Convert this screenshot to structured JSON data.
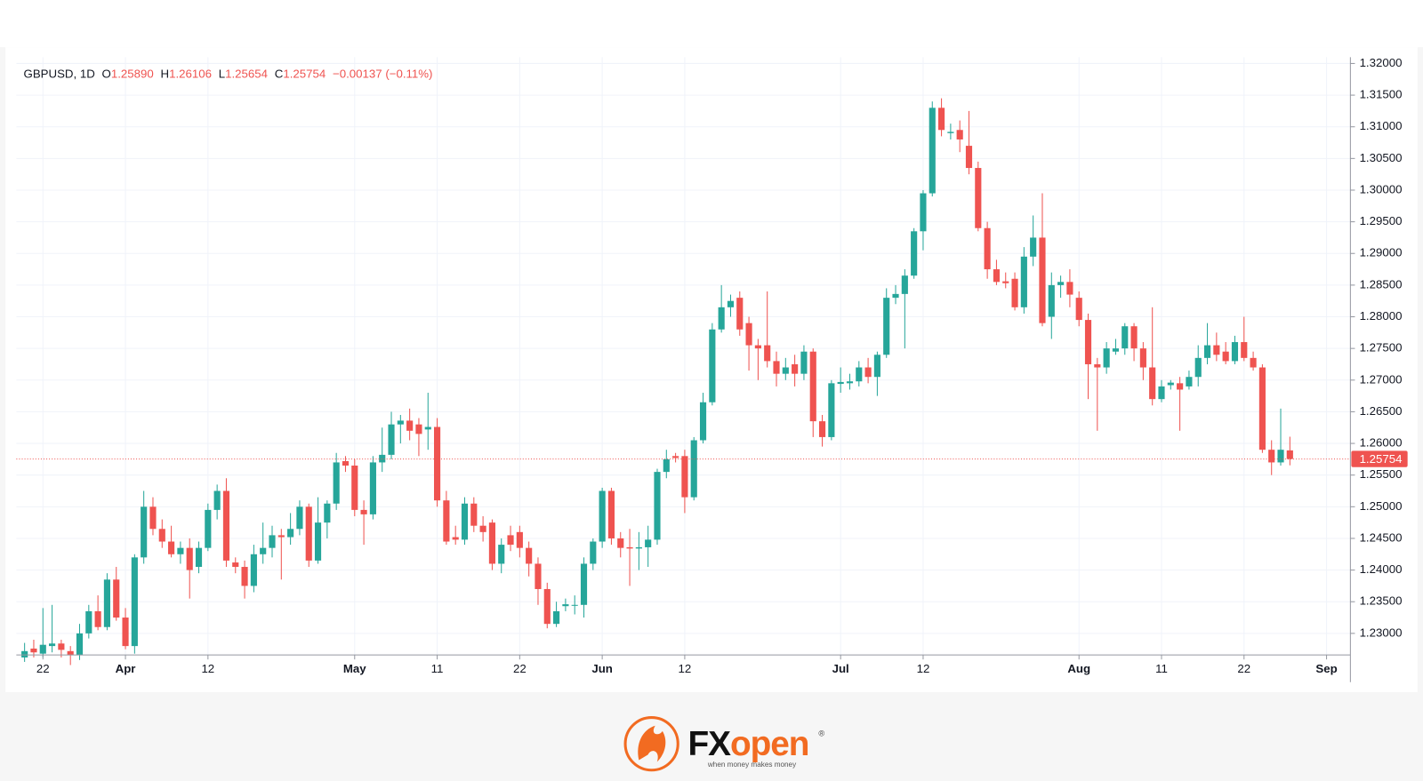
{
  "header": {
    "symbol": "GBPUSD, 1D",
    "o_label": "O",
    "o": "1.25890",
    "h_label": "H",
    "h": "1.26106",
    "l_label": "L",
    "l": "1.25654",
    "c_label": "C",
    "c": "1.25754",
    "change": "−0.00137 (−0.11%)"
  },
  "chart_data": {
    "type": "candlestick",
    "up_color": "#26a69a",
    "down_color": "#ef5350",
    "grid": true,
    "xlim": [
      -0.9,
      144.6
    ],
    "ylim": [
      1.2266,
      1.321
    ],
    "xticks": [
      {
        "value": 2,
        "label": "22"
      },
      {
        "value": 11,
        "label": "Apr"
      },
      {
        "value": 20,
        "label": "12"
      },
      {
        "value": 36,
        "label": "May"
      },
      {
        "value": 45,
        "label": "11"
      },
      {
        "value": 54,
        "label": "22"
      },
      {
        "value": 63,
        "label": "Jun"
      },
      {
        "value": 72,
        "label": "12"
      },
      {
        "value": 89,
        "label": "Jul"
      },
      {
        "value": 98,
        "label": "12"
      },
      {
        "value": 115,
        "label": "Aug"
      },
      {
        "value": 124,
        "label": "11"
      },
      {
        "value": 133,
        "label": "22"
      },
      {
        "value": 142,
        "label": "Sep"
      }
    ],
    "yticks": [
      {
        "value": 1.23,
        "label": "1.23000"
      },
      {
        "value": 1.235,
        "label": "1.23500"
      },
      {
        "value": 1.24,
        "label": "1.24000"
      },
      {
        "value": 1.245,
        "label": "1.24500"
      },
      {
        "value": 1.25,
        "label": "1.25000"
      },
      {
        "value": 1.255,
        "label": "1.25500"
      },
      {
        "value": 1.26,
        "label": "1.26000"
      },
      {
        "value": 1.265,
        "label": "1.26500"
      },
      {
        "value": 1.27,
        "label": "1.27000"
      },
      {
        "value": 1.275,
        "label": "1.27500"
      },
      {
        "value": 1.28,
        "label": "1.28000"
      },
      {
        "value": 1.285,
        "label": "1.28500"
      },
      {
        "value": 1.29,
        "label": "1.29000"
      },
      {
        "value": 1.295,
        "label": "1.29500"
      },
      {
        "value": 1.3,
        "label": "1.30000"
      },
      {
        "value": 1.305,
        "label": "1.30500"
      },
      {
        "value": 1.31,
        "label": "1.31000"
      },
      {
        "value": 1.315,
        "label": "1.31500"
      },
      {
        "value": 1.32,
        "label": "1.32000"
      }
    ],
    "last_price": {
      "value": 1.25754,
      "label": "1.25754"
    },
    "open": [
      1.2262,
      1.2276,
      1.2268,
      1.228,
      1.2284,
      1.2272,
      1.2266,
      1.23,
      1.2335,
      1.231,
      1.2385,
      1.2325,
      1.228,
      1.242,
      1.25,
      1.2465,
      1.2445,
      1.2425,
      1.2435,
      1.2405,
      1.2435,
      1.2495,
      1.2525,
      1.2412,
      1.2405,
      1.2375,
      1.2425,
      1.2435,
      1.2455,
      1.2452,
      1.2465,
      1.25,
      1.2415,
      1.2475,
      1.2505,
      1.2572,
      1.2565,
      1.2495,
      1.2488,
      1.257,
      1.2582,
      1.263,
      1.2636,
      1.263,
      1.2622,
      1.2626,
      1.251,
      1.2452,
      1.2448,
      1.2505,
      1.247,
      1.2475,
      1.241,
      1.2455,
      1.246,
      1.2435,
      1.241,
      1.237,
      1.2315,
      1.2343,
      1.2344,
      1.2345,
      1.241,
      1.2445,
      1.2525,
      1.245,
      1.2436,
      1.2434,
      1.2436,
      1.2448,
      1.2555,
      1.258,
      1.258,
      1.2515,
      1.2605,
      1.2665,
      1.278,
      1.2815,
      1.283,
      1.279,
      1.2755,
      1.2755,
      1.273,
      1.271,
      1.2725,
      1.271,
      1.2745,
      1.2635,
      1.261,
      1.2694,
      1.2695,
      1.2698,
      1.272,
      1.2705,
      1.274,
      1.283,
      1.2836,
      1.2865,
      1.2935,
      1.2995,
      1.313,
      1.309,
      1.3095,
      1.307,
      1.3035,
      1.294,
      1.2875,
      1.2856,
      1.286,
      1.2815,
      1.2895,
      1.2925,
      1.28,
      1.285,
      1.2855,
      1.283,
      1.2795,
      1.2725,
      1.272,
      1.2745,
      1.275,
      1.2785,
      1.275,
      1.272,
      1.267,
      1.2692,
      1.2695,
      1.269,
      1.2705,
      1.2735,
      1.2755,
      1.2745,
      1.273,
      1.276,
      1.2735,
      1.272,
      1.259,
      1.257,
      1.2589
    ],
    "high": [
      1.2285,
      1.229,
      1.234,
      1.2345,
      1.229,
      1.228,
      1.2315,
      1.2345,
      1.236,
      1.2395,
      1.2405,
      1.234,
      1.2425,
      1.2525,
      1.2515,
      1.248,
      1.247,
      1.2445,
      1.245,
      1.2445,
      1.2505,
      1.2535,
      1.2545,
      1.242,
      1.2415,
      1.244,
      1.2475,
      1.247,
      1.2465,
      1.249,
      1.251,
      1.2505,
      1.2515,
      1.251,
      1.2585,
      1.258,
      1.2575,
      1.251,
      1.258,
      1.2625,
      1.265,
      1.2645,
      1.2655,
      1.264,
      1.268,
      1.264,
      1.2525,
      1.247,
      1.2515,
      1.2515,
      1.2485,
      1.248,
      1.245,
      1.247,
      1.247,
      1.2445,
      1.242,
      1.238,
      1.235,
      1.2355,
      1.236,
      1.242,
      1.245,
      1.253,
      1.253,
      1.246,
      1.2465,
      1.246,
      1.247,
      1.256,
      1.259,
      1.2585,
      1.259,
      1.261,
      1.268,
      1.279,
      1.285,
      1.2835,
      1.284,
      1.28,
      1.2765,
      1.284,
      1.2745,
      1.2735,
      1.274,
      1.2755,
      1.275,
      1.2645,
      1.27,
      1.272,
      1.271,
      1.273,
      1.2735,
      1.2745,
      1.2845,
      1.285,
      1.2875,
      1.294,
      1.3,
      1.314,
      1.3145,
      1.3105,
      1.311,
      1.3125,
      1.3045,
      1.295,
      1.289,
      1.287,
      1.287,
      1.291,
      1.296,
      1.2995,
      1.287,
      1.2865,
      1.2875,
      1.284,
      1.2805,
      1.2735,
      1.276,
      1.2765,
      1.279,
      1.279,
      1.276,
      1.2815,
      1.27,
      1.27,
      1.2705,
      1.2715,
      1.2755,
      1.279,
      1.2775,
      1.276,
      1.277,
      1.28,
      1.2745,
      1.2725,
      1.2605,
      1.2655,
      1.26106
    ],
    "low": [
      1.2255,
      1.2262,
      1.2262,
      1.227,
      1.2262,
      1.225,
      1.2258,
      1.2292,
      1.2305,
      1.2305,
      1.232,
      1.2275,
      1.2268,
      1.241,
      1.2455,
      1.2435,
      1.242,
      1.241,
      1.2355,
      1.2395,
      1.243,
      1.248,
      1.2405,
      1.2395,
      1.2355,
      1.2365,
      1.241,
      1.242,
      1.2385,
      1.244,
      1.2455,
      1.2405,
      1.241,
      1.245,
      1.2495,
      1.2555,
      1.2485,
      1.244,
      1.248,
      1.2555,
      1.2575,
      1.26,
      1.2605,
      1.258,
      1.259,
      1.25,
      1.244,
      1.244,
      1.244,
      1.246,
      1.2445,
      1.24,
      1.2395,
      1.243,
      1.242,
      1.239,
      1.2345,
      1.2308,
      1.231,
      1.2335,
      1.233,
      1.2325,
      1.24,
      1.2435,
      1.244,
      1.242,
      1.2375,
      1.24,
      1.2405,
      1.244,
      1.2545,
      1.257,
      1.249,
      1.251,
      1.26,
      1.266,
      1.2775,
      1.28,
      1.277,
      1.2715,
      1.27,
      1.272,
      1.269,
      1.27,
      1.269,
      1.27,
      1.261,
      1.2595,
      1.2605,
      1.268,
      1.2685,
      1.269,
      1.2695,
      1.2675,
      1.2735,
      1.282,
      1.275,
      1.286,
      1.2905,
      1.299,
      1.3085,
      1.308,
      1.306,
      1.3025,
      1.2935,
      1.286,
      1.285,
      1.2845,
      1.281,
      1.2805,
      1.288,
      1.2785,
      1.2765,
      1.283,
      1.2815,
      1.2785,
      1.267,
      1.262,
      1.271,
      1.274,
      1.274,
      1.273,
      1.27,
      1.266,
      1.2665,
      1.2685,
      1.262,
      1.2685,
      1.269,
      1.2725,
      1.273,
      1.2725,
      1.2725,
      1.273,
      1.2715,
      1.2585,
      1.255,
      1.2565,
      1.25654
    ],
    "close": [
      1.2272,
      1.227,
      1.2282,
      1.2284,
      1.2274,
      1.2266,
      1.23,
      1.2335,
      1.231,
      1.2385,
      1.2325,
      1.228,
      1.242,
      1.25,
      1.2465,
      1.2445,
      1.2425,
      1.2435,
      1.24,
      1.2435,
      1.2495,
      1.2525,
      1.2415,
      1.2405,
      1.2375,
      1.2425,
      1.2435,
      1.2455,
      1.2452,
      1.2465,
      1.25,
      1.2415,
      1.2475,
      1.2505,
      1.257,
      1.2565,
      1.2495,
      1.2488,
      1.257,
      1.2582,
      1.263,
      1.2636,
      1.262,
      1.2615,
      1.2626,
      1.251,
      1.2445,
      1.2448,
      1.2505,
      1.247,
      1.246,
      1.241,
      1.244,
      1.244,
      1.2435,
      1.241,
      1.237,
      1.2315,
      1.2335,
      1.2346,
      1.2345,
      1.241,
      1.2445,
      1.2525,
      1.245,
      1.2435,
      1.2434,
      1.2436,
      1.2448,
      1.2555,
      1.2575,
      1.2577,
      1.2515,
      1.2605,
      1.2665,
      1.278,
      1.2815,
      1.2825,
      1.278,
      1.2755,
      1.275,
      1.273,
      1.271,
      1.272,
      1.271,
      1.2745,
      1.2635,
      1.261,
      1.2695,
      1.2697,
      1.2698,
      1.272,
      1.2705,
      1.274,
      1.283,
      1.2836,
      1.2865,
      1.2935,
      1.2995,
      1.313,
      1.3095,
      1.3092,
      1.308,
      1.3035,
      1.294,
      1.2875,
      1.2855,
      1.2853,
      1.2815,
      1.2895,
      1.2925,
      1.279,
      1.285,
      1.2855,
      1.2835,
      1.2795,
      1.2725,
      1.272,
      1.275,
      1.275,
      1.2785,
      1.275,
      1.272,
      1.267,
      1.269,
      1.2696,
      1.2685,
      1.2705,
      1.2735,
      1.2755,
      1.274,
      1.273,
      1.276,
      1.2735,
      1.272,
      1.259,
      1.257,
      1.259,
      1.25754
    ]
  },
  "logo": {
    "fx": "FX",
    "open": "open",
    "registered": "®",
    "tagline": "when money makes money"
  }
}
